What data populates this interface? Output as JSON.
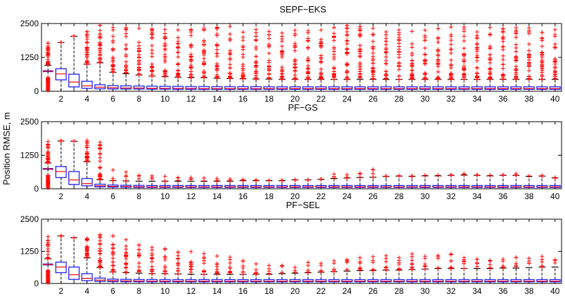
{
  "figure": {
    "ylabel": "Position RMSE, m"
  },
  "chart_data": [
    {
      "type": "box",
      "title": "SEPF−EKS",
      "ylim": [
        0,
        2500
      ],
      "yticks": [
        "0",
        "1250",
        "2500"
      ],
      "x": [
        1,
        2,
        3,
        4,
        5,
        6,
        7,
        8,
        9,
        10,
        11,
        12,
        13,
        14,
        15,
        16,
        17,
        18,
        19,
        20,
        21,
        22,
        23,
        24,
        25,
        26,
        27,
        28,
        29,
        30,
        31,
        32,
        33,
        34,
        35,
        36,
        37,
        38,
        39,
        40
      ],
      "xticks": [
        "2",
        "4",
        "6",
        "8",
        "10",
        "12",
        "14",
        "16",
        "18",
        "20",
        "22",
        "24",
        "26",
        "28",
        "30",
        "32",
        "34",
        "36",
        "38",
        "40"
      ],
      "median": [
        740,
        640,
        340,
        200,
        150,
        130,
        120,
        120,
        110,
        110,
        105,
        105,
        100,
        100,
        100,
        100,
        100,
        100,
        100,
        100,
        100,
        100,
        100,
        100,
        100,
        100,
        100,
        100,
        100,
        100,
        100,
        100,
        100,
        100,
        100,
        100,
        100,
        100,
        100,
        100
      ],
      "q1": [
        740,
        420,
        160,
        110,
        90,
        85,
        80,
        80,
        75,
        75,
        70,
        70,
        70,
        70,
        70,
        70,
        70,
        70,
        70,
        70,
        70,
        70,
        70,
        70,
        70,
        70,
        70,
        70,
        70,
        70,
        70,
        70,
        70,
        70,
        70,
        70,
        70,
        70,
        70,
        70
      ],
      "q3": [
        740,
        830,
        630,
        370,
        240,
        210,
        200,
        195,
        190,
        185,
        180,
        175,
        175,
        170,
        170,
        170,
        170,
        165,
        165,
        165,
        165,
        165,
        165,
        165,
        165,
        165,
        165,
        165,
        165,
        165,
        165,
        165,
        165,
        165,
        165,
        165,
        165,
        165,
        165,
        165
      ],
      "whisker_high": [
        960,
        1800,
        2030,
        1000,
        1050,
        700,
        650,
        600,
        560,
        540,
        520,
        500,
        500,
        480,
        470,
        460,
        450,
        450,
        440,
        440,
        440,
        440,
        440,
        440,
        440,
        440,
        440,
        440,
        440,
        440,
        440,
        440,
        440,
        440,
        440,
        440,
        440,
        440,
        440,
        440
      ],
      "outlier_max": [
        1780,
        1800,
        2030,
        2200,
        2440,
        2350,
        2350,
        2320,
        2300,
        2280,
        2260,
        2280,
        2330,
        2360,
        2390,
        2180,
        2280,
        2200,
        2150,
        2250,
        2230,
        2260,
        2350,
        2460,
        2390,
        2320,
        2190,
        2260,
        2210,
        2250,
        2310,
        2370,
        2370,
        2190,
        2350,
        2310,
        2340,
        2330,
        2470,
        2270
      ]
    },
    {
      "type": "box",
      "title": "PF−GS",
      "ylim": [
        0,
        2500
      ],
      "yticks": [
        "0",
        "1250",
        "2500"
      ],
      "x": [
        1,
        2,
        3,
        4,
        5,
        6,
        7,
        8,
        9,
        10,
        11,
        12,
        13,
        14,
        15,
        16,
        17,
        18,
        19,
        20,
        21,
        22,
        23,
        24,
        25,
        26,
        27,
        28,
        29,
        30,
        31,
        32,
        33,
        34,
        35,
        36,
        37,
        38,
        39,
        40
      ],
      "xticks": [
        "2",
        "4",
        "6",
        "8",
        "10",
        "12",
        "14",
        "16",
        "18",
        "20",
        "22",
        "24",
        "26",
        "28",
        "30",
        "32",
        "34",
        "36",
        "38",
        "40"
      ],
      "median": [
        740,
        640,
        330,
        190,
        110,
        90,
        80,
        75,
        70,
        70,
        70,
        70,
        70,
        70,
        70,
        70,
        70,
        70,
        70,
        70,
        70,
        70,
        70,
        70,
        70,
        70,
        70,
        70,
        70,
        70,
        70,
        70,
        70,
        70,
        70,
        70,
        70,
        70,
        70,
        70
      ],
      "q1": [
        740,
        420,
        160,
        110,
        70,
        60,
        55,
        50,
        50,
        50,
        50,
        50,
        50,
        50,
        50,
        50,
        50,
        50,
        50,
        50,
        50,
        50,
        50,
        50,
        50,
        50,
        50,
        50,
        50,
        50,
        50,
        50,
        50,
        50,
        50,
        50,
        50,
        50,
        50,
        50
      ],
      "q3": [
        740,
        830,
        640,
        380,
        170,
        140,
        130,
        125,
        120,
        120,
        120,
        120,
        120,
        120,
        120,
        120,
        120,
        120,
        120,
        120,
        120,
        120,
        120,
        120,
        120,
        120,
        120,
        120,
        120,
        120,
        120,
        120,
        120,
        120,
        120,
        120,
        120,
        120,
        120,
        120
      ],
      "whisker_high": [
        960,
        1780,
        1770,
        1010,
        340,
        300,
        290,
        280,
        280,
        280,
        280,
        280,
        280,
        280,
        280,
        300,
        300,
        300,
        300,
        330,
        330,
        350,
        380,
        400,
        420,
        430,
        460,
        470,
        460,
        480,
        480,
        500,
        510,
        500,
        480,
        500,
        500,
        460,
        470,
        400
      ],
      "outlier_max": [
        1760,
        1780,
        1770,
        1800,
        1730,
        700,
        620,
        500,
        480,
        460,
        420,
        420,
        400,
        380,
        360,
        340,
        330,
        320,
        320,
        340,
        340,
        360,
        540,
        520,
        580,
        720,
        470,
        490,
        480,
        500,
        500,
        520,
        560,
        520,
        500,
        520,
        560,
        480,
        490,
        420
      ]
    },
    {
      "type": "box",
      "title": "PF−SEL",
      "ylim": [
        0,
        2500
      ],
      "yticks": [
        "0",
        "1250",
        "2500"
      ],
      "x": [
        1,
        2,
        3,
        4,
        5,
        6,
        7,
        8,
        9,
        10,
        11,
        12,
        13,
        14,
        15,
        16,
        17,
        18,
        19,
        20,
        21,
        22,
        23,
        24,
        25,
        26,
        27,
        28,
        29,
        30,
        31,
        32,
        33,
        34,
        35,
        36,
        37,
        38,
        39,
        40
      ],
      "xticks": [
        "2",
        "4",
        "6",
        "8",
        "10",
        "12",
        "14",
        "16",
        "18",
        "20",
        "22",
        "24",
        "26",
        "28",
        "30",
        "32",
        "34",
        "36",
        "38",
        "40"
      ],
      "median": [
        740,
        640,
        340,
        200,
        130,
        110,
        100,
        95,
        90,
        90,
        90,
        90,
        90,
        90,
        90,
        90,
        90,
        90,
        90,
        90,
        90,
        90,
        90,
        90,
        90,
        90,
        90,
        90,
        90,
        90,
        90,
        90,
        90,
        90,
        90,
        90,
        90,
        90,
        90,
        90
      ],
      "q1": [
        740,
        420,
        160,
        110,
        80,
        70,
        65,
        65,
        60,
        60,
        60,
        60,
        60,
        60,
        60,
        60,
        60,
        60,
        60,
        60,
        60,
        60,
        60,
        60,
        60,
        60,
        60,
        60,
        60,
        60,
        60,
        60,
        60,
        60,
        60,
        60,
        60,
        60,
        60,
        60
      ],
      "q3": [
        740,
        830,
        640,
        380,
        210,
        170,
        160,
        155,
        150,
        150,
        150,
        150,
        150,
        150,
        150,
        150,
        150,
        150,
        150,
        150,
        150,
        150,
        150,
        150,
        150,
        150,
        150,
        150,
        150,
        150,
        150,
        150,
        150,
        150,
        150,
        150,
        150,
        150,
        150,
        150
      ],
      "whisker_high": [
        960,
        1850,
        1780,
        1000,
        620,
        450,
        420,
        400,
        380,
        380,
        370,
        360,
        360,
        360,
        360,
        360,
        360,
        360,
        380,
        400,
        420,
        440,
        460,
        480,
        500,
        500,
        520,
        520,
        540,
        560,
        580,
        580,
        580,
        580,
        580,
        600,
        600,
        620,
        640,
        640
      ],
      "outlier_max": [
        1820,
        1850,
        1780,
        1750,
        1900,
        1850,
        1700,
        1500,
        1400,
        1350,
        1220,
        1240,
        1160,
        1070,
        1020,
        880,
        760,
        700,
        700,
        620,
        820,
        780,
        880,
        920,
        1000,
        1040,
        1080,
        1000,
        1150,
        1060,
        1090,
        1150,
        1000,
        940,
        900,
        940,
        1010,
        980,
        1050,
        920
      ]
    }
  ]
}
